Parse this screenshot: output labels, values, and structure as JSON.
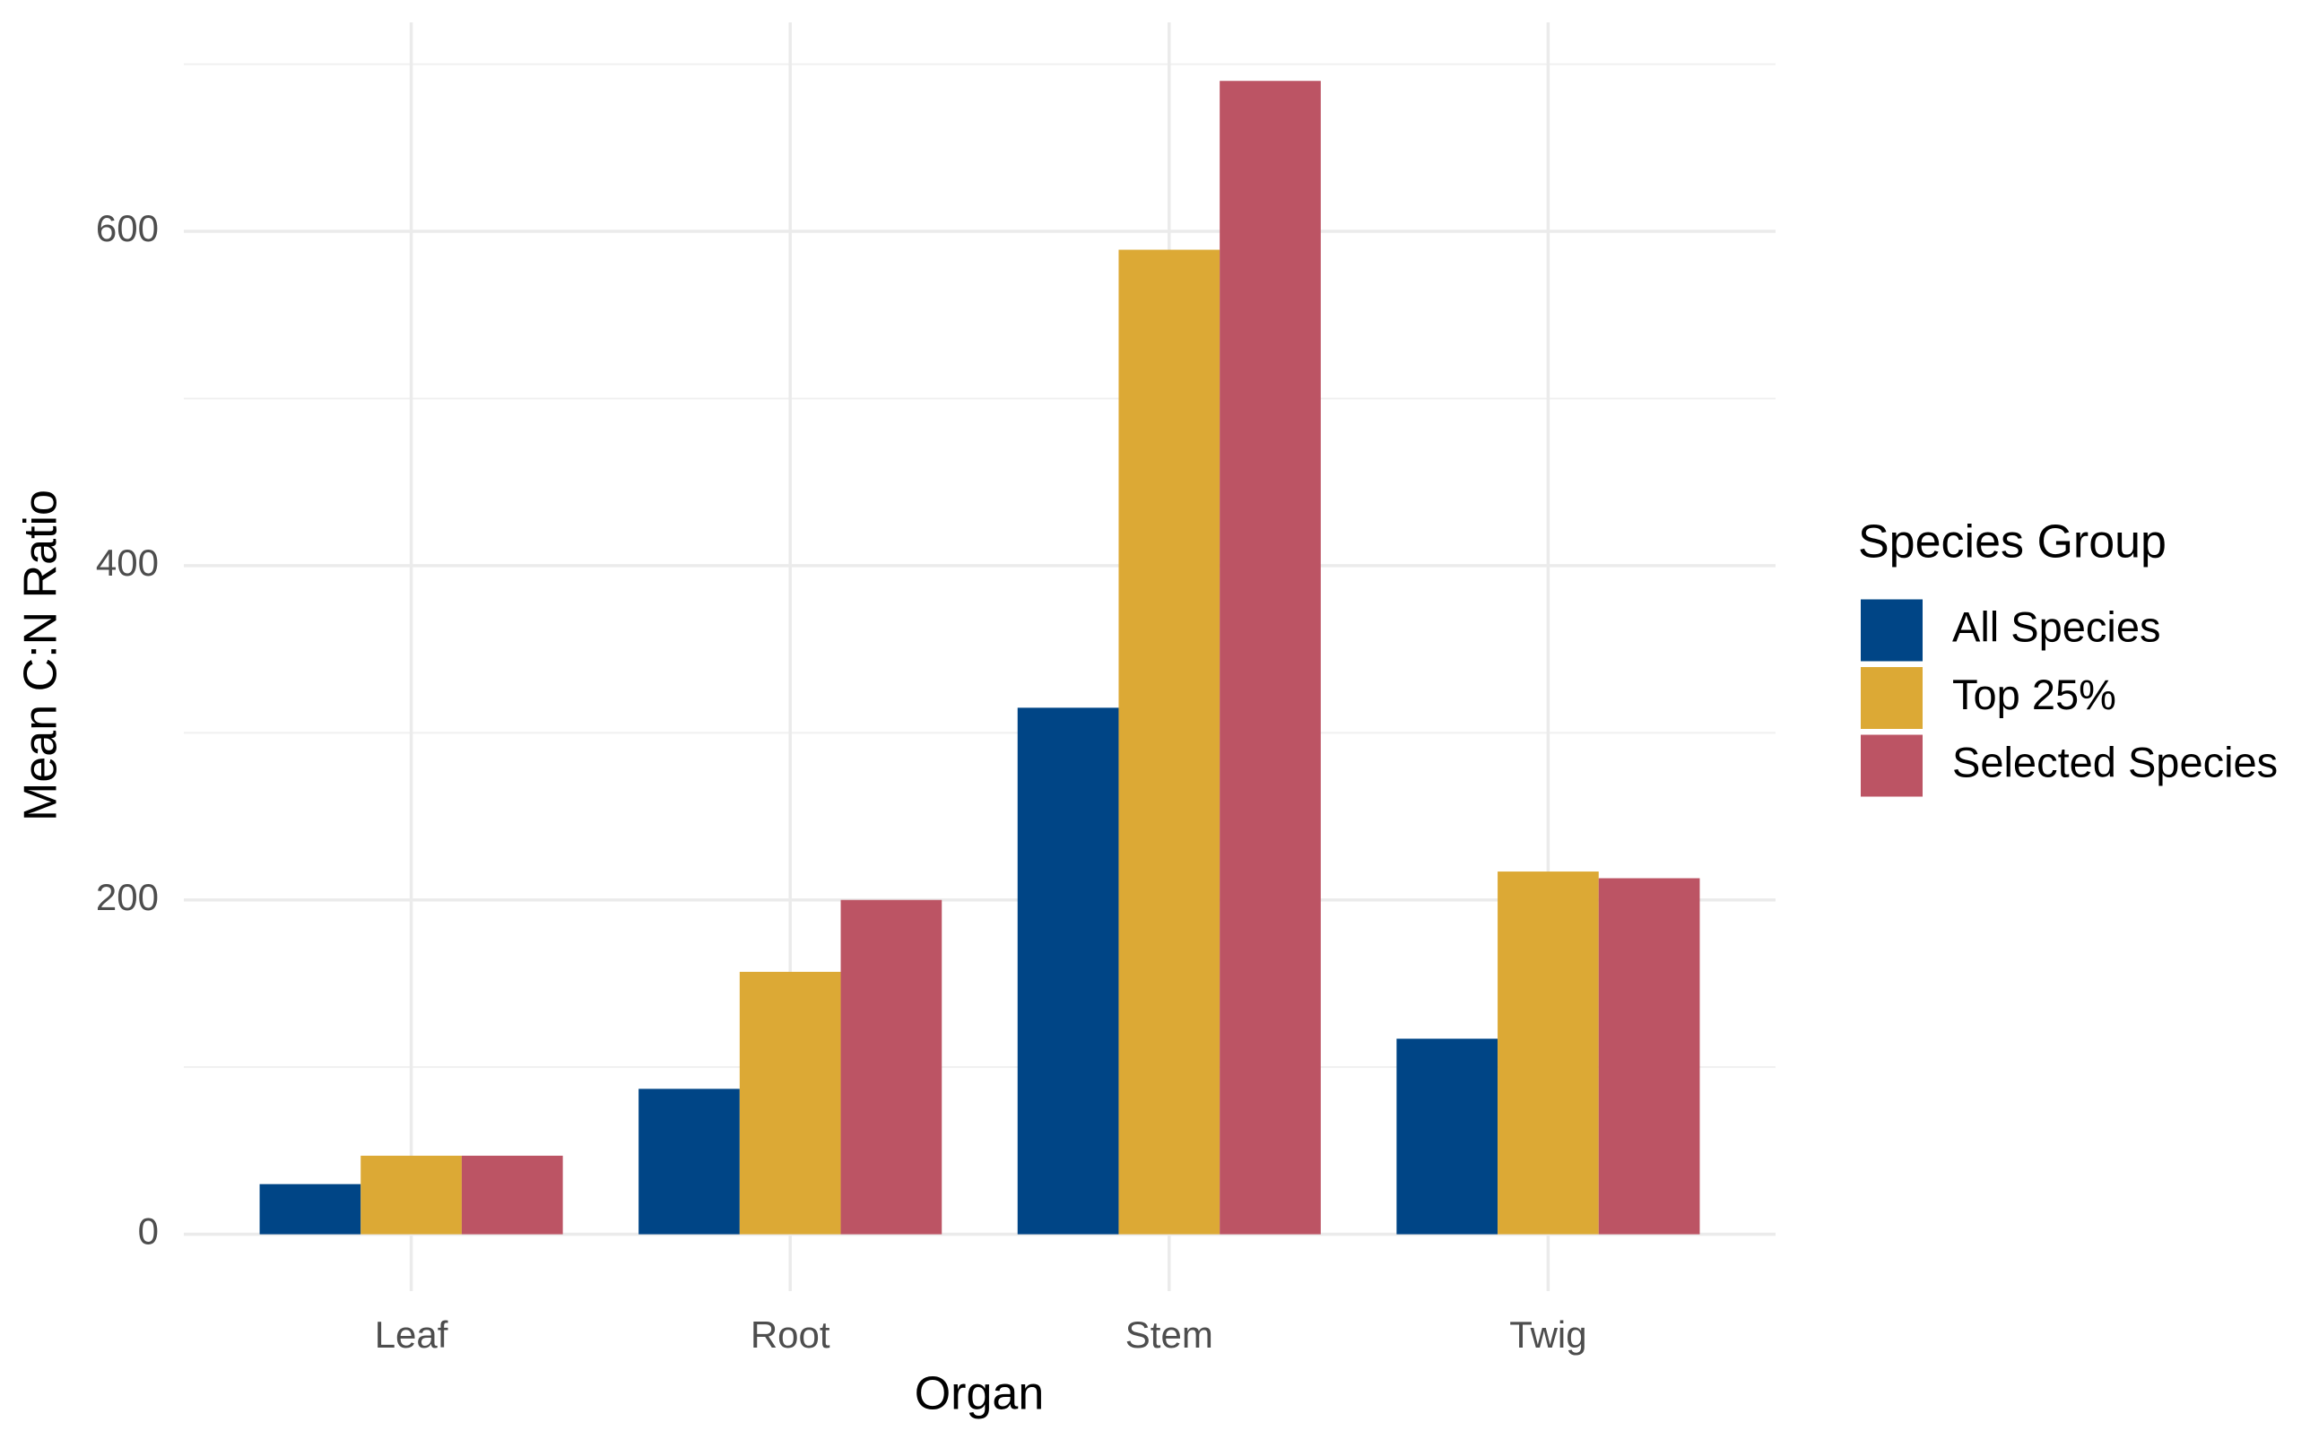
{
  "chart_data": {
    "type": "bar",
    "x_label": "Organ",
    "y_label": "Mean C:N Ratio",
    "categories": [
      "Leaf",
      "Root",
      "Stem",
      "Twig"
    ],
    "series": [
      {
        "name": "All Species",
        "color": "#004586",
        "values": [
          30,
          87,
          315,
          117
        ]
      },
      {
        "name": "Top 25%",
        "color": "#dca935",
        "values": [
          47,
          157,
          589,
          217
        ]
      },
      {
        "name": "Selected Species",
        "color": "#bc5464",
        "values": [
          47,
          200,
          690,
          213
        ]
      }
    ],
    "legend_title": "Species Group",
    "legend_position": "right",
    "ylim": [
      -34,
      725
    ],
    "yticks": [
      0,
      200,
      400,
      600
    ],
    "minor_yticks": [
      100,
      300,
      500,
      700
    ],
    "grid": true
  }
}
